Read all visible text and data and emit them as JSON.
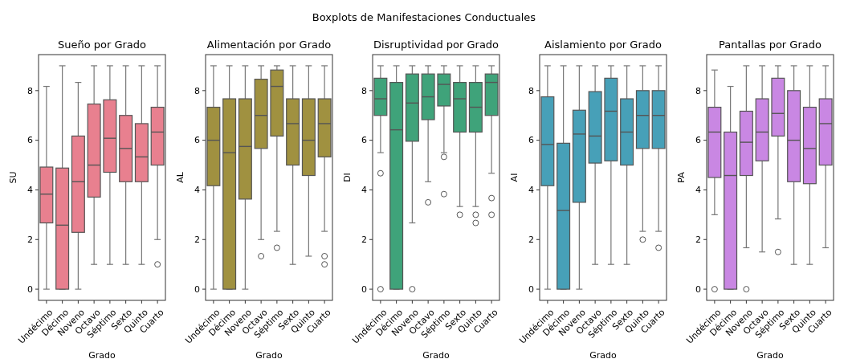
{
  "chart_data": [
    {
      "type": "box",
      "title": "Sueño por Grado",
      "xlabel": "Grado",
      "ylabel": "SU",
      "annotations": [
        "Boxplots de Manifestaciones Conductuales"
      ],
      "categories": [
        "Undécimo",
        "Décimo",
        "Noveno",
        "Octavo",
        "Séptimo",
        "Sexto",
        "Quinto",
        "Cuarto"
      ],
      "ylim": [
        -0.45,
        9.45
      ],
      "yticks": [
        0,
        2,
        4,
        6,
        8
      ],
      "series": [
        {
          "color": "#e8808f",
          "boxes": [
            {
              "low": 0,
              "q1": 2.67,
              "median": 3.83,
              "q3": 4.92,
              "high": 8.17
            },
            {
              "low": 0,
              "q1": 0,
              "median": 2.58,
              "q3": 4.88,
              "high": 9
            },
            {
              "low": 0,
              "q1": 2.29,
              "median": 4.33,
              "q3": 6.17,
              "high": 8.33
            },
            {
              "low": 1,
              "q1": 3.71,
              "median": 5.0,
              "q3": 7.46,
              "high": 9
            },
            {
              "low": 1,
              "q1": 4.71,
              "median": 6.08,
              "q3": 7.63,
              "high": 9
            },
            {
              "low": 1,
              "q1": 4.33,
              "median": 5.67,
              "q3": 7.0,
              "high": 9
            },
            {
              "low": 1,
              "q1": 4.33,
              "median": 5.33,
              "q3": 6.67,
              "high": 9
            },
            {
              "low": 2,
              "q1": 5.0,
              "median": 6.33,
              "q3": 7.33,
              "high": 9,
              "outliers": [
                1
              ]
            }
          ]
        }
      ]
    },
    {
      "type": "box",
      "title": "Alimentación por Grado",
      "xlabel": "Grado",
      "ylabel": "AL",
      "categories": [
        "Undécimo",
        "Décimo",
        "Noveno",
        "Octavo",
        "Séptimo",
        "Sexto",
        "Quinto",
        "Cuarto"
      ],
      "ylim": [
        -0.45,
        9.45
      ],
      "yticks": [
        0,
        2,
        4,
        6,
        8
      ],
      "series": [
        {
          "color": "#a09140",
          "boxes": [
            {
              "low": 0,
              "q1": 4.17,
              "median": 6.0,
              "q3": 7.33,
              "high": 9
            },
            {
              "low": 0,
              "q1": 0,
              "median": 5.5,
              "q3": 7.67,
              "high": 9
            },
            {
              "low": 0,
              "q1": 3.63,
              "median": 5.75,
              "q3": 7.67,
              "high": 9
            },
            {
              "low": 2,
              "q1": 5.67,
              "median": 7.0,
              "q3": 8.46,
              "high": 9,
              "outliers": [
                1.33
              ]
            },
            {
              "low": 2.33,
              "q1": 6.17,
              "median": 8.17,
              "q3": 8.83,
              "high": 9,
              "outliers": [
                1.67
              ]
            },
            {
              "low": 1,
              "q1": 5.0,
              "median": 6.67,
              "q3": 7.67,
              "high": 9
            },
            {
              "low": 1.33,
              "q1": 4.58,
              "median": 6.0,
              "q3": 7.67,
              "high": 9
            },
            {
              "low": 2.33,
              "q1": 5.33,
              "median": 6.67,
              "q3": 7.67,
              "high": 9,
              "outliers": [
                1.33,
                1
              ]
            }
          ]
        }
      ]
    },
    {
      "type": "box",
      "title": "Disruptividad por Grado",
      "xlabel": "Grado",
      "ylabel": "DI",
      "categories": [
        "Undécimo",
        "Décimo",
        "Noveno",
        "Octavo",
        "Séptimo",
        "Sexto",
        "Quinto",
        "Cuarto"
      ],
      "ylim": [
        -0.45,
        9.45
      ],
      "yticks": [
        0,
        2,
        4,
        6,
        8
      ],
      "series": [
        {
          "color": "#3fa37a",
          "boxes": [
            {
              "low": 5.5,
              "q1": 7.0,
              "median": 7.67,
              "q3": 8.5,
              "high": 9,
              "outliers": [
                4.67,
                0
              ]
            },
            {
              "low": 0,
              "q1": 0,
              "median": 6.42,
              "q3": 8.33,
              "high": 9
            },
            {
              "low": 2.67,
              "q1": 5.96,
              "median": 7.5,
              "q3": 8.67,
              "high": 9,
              "outliers": [
                0
              ]
            },
            {
              "low": 4.33,
              "q1": 6.83,
              "median": 7.75,
              "q3": 8.67,
              "high": 9,
              "outliers": [
                3.5
              ]
            },
            {
              "low": 5.5,
              "q1": 7.38,
              "median": 8.25,
              "q3": 8.67,
              "high": 9,
              "outliers": [
                5.33,
                3.83
              ]
            },
            {
              "low": 3.33,
              "q1": 6.33,
              "median": 7.67,
              "q3": 8.33,
              "high": 9,
              "outliers": [
                3
              ]
            },
            {
              "low": 3.33,
              "q1": 6.33,
              "median": 7.33,
              "q3": 8.33,
              "high": 9,
              "outliers": [
                3,
                2.67
              ]
            },
            {
              "low": 4.67,
              "q1": 7.0,
              "median": 8.33,
              "q3": 8.67,
              "high": 9,
              "outliers": [
                3.67,
                3
              ]
            }
          ]
        }
      ]
    },
    {
      "type": "box",
      "title": "Aislamiento por Grado",
      "xlabel": "Grado",
      "ylabel": "AI",
      "categories": [
        "Undécimo",
        "Décimo",
        "Noveno",
        "Octavo",
        "Séptimo",
        "Sexto",
        "Quinto",
        "Cuarto"
      ],
      "ylim": [
        -0.45,
        9.45
      ],
      "yticks": [
        0,
        2,
        4,
        6,
        8
      ],
      "series": [
        {
          "color": "#47a0b8",
          "boxes": [
            {
              "low": 0,
              "q1": 4.17,
              "median": 5.83,
              "q3": 7.75,
              "high": 9
            },
            {
              "low": 0,
              "q1": 0,
              "median": 3.17,
              "q3": 5.88,
              "high": 9
            },
            {
              "low": 0,
              "q1": 3.5,
              "median": 6.25,
              "q3": 7.21,
              "high": 9
            },
            {
              "low": 1,
              "q1": 5.08,
              "median": 6.17,
              "q3": 7.96,
              "high": 9
            },
            {
              "low": 1,
              "q1": 5.17,
              "median": 7.17,
              "q3": 8.5,
              "high": 9
            },
            {
              "low": 1,
              "q1": 5.0,
              "median": 6.33,
              "q3": 7.67,
              "high": 9
            },
            {
              "low": 2.33,
              "q1": 5.67,
              "median": 7.0,
              "q3": 8.0,
              "high": 9,
              "outliers": [
                2
              ]
            },
            {
              "low": 2.33,
              "q1": 5.67,
              "median": 7.0,
              "q3": 8.0,
              "high": 9,
              "outliers": [
                1.67
              ]
            }
          ]
        }
      ]
    },
    {
      "type": "box",
      "title": "Pantallas por Grado",
      "xlabel": "Grado",
      "ylabel": "PA",
      "categories": [
        "Undécimo",
        "Décimo",
        "Noveno",
        "Octavo",
        "Séptimo",
        "Sexto",
        "Quinto",
        "Cuarto"
      ],
      "ylim": [
        -0.45,
        9.45
      ],
      "yticks": [
        0,
        2,
        4,
        6,
        8
      ],
      "series": [
        {
          "color": "#c987e3",
          "boxes": [
            {
              "low": 3,
              "q1": 4.5,
              "median": 6.33,
              "q3": 7.33,
              "high": 8.83,
              "outliers": [
                0
              ]
            },
            {
              "low": 0,
              "q1": 0,
              "median": 4.58,
              "q3": 6.33,
              "high": 8.17
            },
            {
              "low": 1.67,
              "q1": 4.58,
              "median": 5.92,
              "q3": 7.17,
              "high": 9,
              "outliers": [
                0
              ]
            },
            {
              "low": 1.5,
              "q1": 5.17,
              "median": 6.33,
              "q3": 7.67,
              "high": 9
            },
            {
              "low": 2.83,
              "q1": 6.17,
              "median": 7.08,
              "q3": 8.5,
              "high": 9,
              "outliers": [
                1.5
              ]
            },
            {
              "low": 1,
              "q1": 4.33,
              "median": 6.0,
              "q3": 8.0,
              "high": 9
            },
            {
              "low": 1,
              "q1": 4.25,
              "median": 5.67,
              "q3": 7.33,
              "high": 9
            },
            {
              "low": 1.67,
              "q1": 5.0,
              "median": 6.67,
              "q3": 7.67,
              "high": 9
            }
          ]
        }
      ]
    }
  ]
}
